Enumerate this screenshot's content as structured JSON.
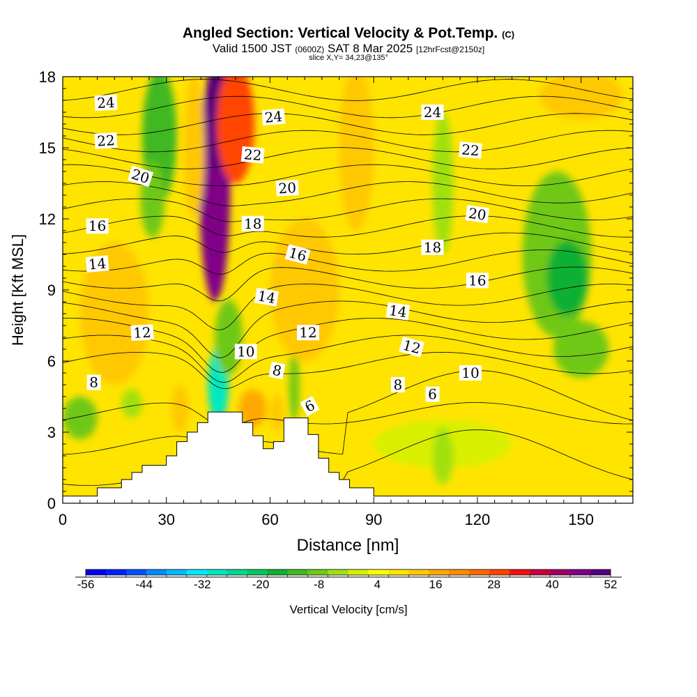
{
  "title": {
    "main": "Angled Section: Vertical Velocity & Pot.Temp.",
    "copyright": "(C)",
    "valid_prefix": "Valid 1500 JST",
    "valid_utc": "(0600Z)",
    "valid_date": "SAT 8 Mar 2025",
    "forecast": "[12hrFcst@2150z]",
    "slice": "slice X,Y= 34,23@135°"
  },
  "chart_data": {
    "type": "heatmap",
    "xlabel": "Distance [nm]",
    "ylabel": "Height [Kft MSL]",
    "xlim": [
      0,
      165
    ],
    "ylim": [
      0,
      18
    ],
    "x_ticks": [
      0,
      30,
      60,
      90,
      120,
      150
    ],
    "y_ticks": [
      0,
      3,
      6,
      9,
      12,
      15,
      18
    ],
    "colorbar": {
      "label": "Vertical Velocity [cm/s]",
      "ticks": [
        -56,
        -44,
        -32,
        -20,
        -8,
        4,
        16,
        28,
        40,
        52
      ],
      "min": -56,
      "max": 52,
      "colors": [
        "#0000f0",
        "#0020ff",
        "#0050ff",
        "#0088ff",
        "#00b8ff",
        "#00e8ff",
        "#00e8c0",
        "#00d890",
        "#00c860",
        "#10b030",
        "#40b820",
        "#70c818",
        "#a0e010",
        "#d8f000",
        "#ffff00",
        "#ffe400",
        "#ffc800",
        "#ffa800",
        "#ff8c00",
        "#ff6800",
        "#ff4400",
        "#f01010",
        "#c8003c",
        "#a00064",
        "#800088",
        "#50007c"
      ]
    },
    "terrain_profile_kft": [
      {
        "x": 0,
        "y": 0.3
      },
      {
        "x": 10,
        "y": 0.3
      },
      {
        "x": 10,
        "y": 0.65
      },
      {
        "x": 17,
        "y": 0.65
      },
      {
        "x": 17,
        "y": 1.0
      },
      {
        "x": 20,
        "y": 1.0
      },
      {
        "x": 20,
        "y": 1.3
      },
      {
        "x": 23,
        "y": 1.3
      },
      {
        "x": 23,
        "y": 1.6
      },
      {
        "x": 30,
        "y": 1.6
      },
      {
        "x": 30,
        "y": 2.0
      },
      {
        "x": 33,
        "y": 2.0
      },
      {
        "x": 33,
        "y": 2.6
      },
      {
        "x": 36,
        "y": 2.6
      },
      {
        "x": 36,
        "y": 3.0
      },
      {
        "x": 39,
        "y": 3.0
      },
      {
        "x": 39,
        "y": 3.4
      },
      {
        "x": 42,
        "y": 3.4
      },
      {
        "x": 42,
        "y": 3.85
      },
      {
        "x": 52,
        "y": 3.85
      },
      {
        "x": 52,
        "y": 3.4
      },
      {
        "x": 55,
        "y": 3.4
      },
      {
        "x": 55,
        "y": 2.85
      },
      {
        "x": 58,
        "y": 2.85
      },
      {
        "x": 58,
        "y": 2.3
      },
      {
        "x": 61,
        "y": 2.3
      },
      {
        "x": 61,
        "y": 2.6
      },
      {
        "x": 64,
        "y": 2.6
      },
      {
        "x": 64,
        "y": 3.6
      },
      {
        "x": 71,
        "y": 3.6
      },
      {
        "x": 71,
        "y": 2.9
      },
      {
        "x": 74,
        "y": 2.9
      },
      {
        "x": 74,
        "y": 1.9
      },
      {
        "x": 77,
        "y": 1.9
      },
      {
        "x": 77,
        "y": 1.3
      },
      {
        "x": 80,
        "y": 1.3
      },
      {
        "x": 80,
        "y": 1.0
      },
      {
        "x": 83,
        "y": 1.0
      },
      {
        "x": 83,
        "y": 0.65
      },
      {
        "x": 90,
        "y": 0.65
      },
      {
        "x": 90,
        "y": 0.3
      },
      {
        "x": 165,
        "y": 0.3
      }
    ],
    "velocity_features_cms": [
      {
        "x": 44,
        "y": 13.5,
        "rx": 4.5,
        "ry": 5.0,
        "v": 44
      },
      {
        "x": 45,
        "y": 16.5,
        "rx": 3.0,
        "ry": 2.5,
        "v": 52
      },
      {
        "x": 50,
        "y": 16.0,
        "rx": 5.5,
        "ry": 2.5,
        "v": 30
      },
      {
        "x": 38,
        "y": 15.0,
        "rx": 3.0,
        "ry": 3.0,
        "v": 14
      },
      {
        "x": 28,
        "y": 15.5,
        "rx": 5.0,
        "ry": 2.8,
        "v": -14
      },
      {
        "x": 26,
        "y": 12.8,
        "rx": 3.5,
        "ry": 1.6,
        "v": -8
      },
      {
        "x": 45,
        "y": 5.0,
        "rx": 3.0,
        "ry": 1.6,
        "v": -28
      },
      {
        "x": 48,
        "y": 7.0,
        "rx": 4.0,
        "ry": 1.6,
        "v": -10
      },
      {
        "x": 67,
        "y": 5.0,
        "rx": 1.5,
        "ry": 1.6,
        "v": -10
      },
      {
        "x": 55,
        "y": 4.0,
        "rx": 4.0,
        "ry": 0.8,
        "v": 18
      },
      {
        "x": 62,
        "y": 3.8,
        "rx": 2.0,
        "ry": 0.8,
        "v": 14
      },
      {
        "x": 34,
        "y": 4.0,
        "rx": 2.5,
        "ry": 1.0,
        "v": 12
      },
      {
        "x": 85,
        "y": 15.0,
        "rx": 5.0,
        "ry": 3.5,
        "v": 14
      },
      {
        "x": 96,
        "y": 15.0,
        "rx": 3.0,
        "ry": 2.2,
        "v": 8
      },
      {
        "x": 122,
        "y": 16.5,
        "rx": 6.0,
        "ry": 1.5,
        "v": 10
      },
      {
        "x": 150,
        "y": 17.2,
        "rx": 12.0,
        "ry": 1.0,
        "v": 14
      },
      {
        "x": 110,
        "y": 13.5,
        "rx": 3.0,
        "ry": 3.0,
        "v": -5
      },
      {
        "x": 143,
        "y": 10.5,
        "rx": 10.0,
        "ry": 3.5,
        "v": -10
      },
      {
        "x": 146,
        "y": 9.5,
        "rx": 6.0,
        "ry": 1.6,
        "v": -15
      },
      {
        "x": 150,
        "y": 6.5,
        "rx": 8.0,
        "ry": 1.2,
        "v": -8
      },
      {
        "x": 110,
        "y": 2.5,
        "rx": 20.0,
        "ry": 1.0,
        "v": -2
      },
      {
        "x": 110,
        "y": 2.0,
        "rx": 3.0,
        "ry": 1.2,
        "v": -6
      },
      {
        "x": 5,
        "y": 3.6,
        "rx": 5.0,
        "ry": 0.9,
        "v": -8
      },
      {
        "x": 20,
        "y": 4.2,
        "rx": 3.0,
        "ry": 0.6,
        "v": -5
      },
      {
        "x": 15,
        "y": 8.0,
        "rx": 10.0,
        "ry": 3.0,
        "v": 13
      },
      {
        "x": 70,
        "y": 9.0,
        "rx": 10.0,
        "ry": 3.0,
        "v": 12
      },
      {
        "x": 80,
        "y": 4.5,
        "rx": 6.0,
        "ry": 1.5,
        "v": 8
      }
    ],
    "theta_contour_labels": [
      {
        "text": "24",
        "x": 12.5,
        "y": 16.9,
        "rot": -3
      },
      {
        "text": "22",
        "x": 12.5,
        "y": 15.3,
        "rot": -3
      },
      {
        "text": "20",
        "x": 22.5,
        "y": 13.8,
        "rot": 18
      },
      {
        "text": "16",
        "x": 10,
        "y": 11.7,
        "rot": 0
      },
      {
        "text": "14",
        "x": 10,
        "y": 10.1,
        "rot": -5
      },
      {
        "text": "12",
        "x": 23,
        "y": 7.2,
        "rot": -3
      },
      {
        "text": "8",
        "x": 9,
        "y": 5.1,
        "rot": 0
      },
      {
        "text": "24",
        "x": 61,
        "y": 16.3,
        "rot": -5
      },
      {
        "text": "22",
        "x": 55,
        "y": 14.7,
        "rot": 5
      },
      {
        "text": "20",
        "x": 65,
        "y": 13.3,
        "rot": -3
      },
      {
        "text": "18",
        "x": 55,
        "y": 11.8,
        "rot": 0
      },
      {
        "text": "16",
        "x": 68,
        "y": 10.5,
        "rot": 15
      },
      {
        "text": "14",
        "x": 59,
        "y": 8.7,
        "rot": 10
      },
      {
        "text": "10",
        "x": 53,
        "y": 6.4,
        "rot": 0
      },
      {
        "text": "8",
        "x": 62,
        "y": 5.6,
        "rot": 12
      },
      {
        "text": "12",
        "x": 71,
        "y": 7.2,
        "rot": 0
      },
      {
        "text": "6",
        "x": 71.5,
        "y": 4.1,
        "rot": -28
      },
      {
        "text": "24",
        "x": 107,
        "y": 16.5,
        "rot": 0
      },
      {
        "text": "22",
        "x": 118,
        "y": 14.9,
        "rot": 5
      },
      {
        "text": "20",
        "x": 120,
        "y": 12.2,
        "rot": 8
      },
      {
        "text": "18",
        "x": 107,
        "y": 10.8,
        "rot": 0
      },
      {
        "text": "16",
        "x": 120,
        "y": 9.4,
        "rot": 0
      },
      {
        "text": "14",
        "x": 97,
        "y": 8.1,
        "rot": 8
      },
      {
        "text": "12",
        "x": 101,
        "y": 6.6,
        "rot": 15
      },
      {
        "text": "10",
        "x": 118,
        "y": 5.5,
        "rot": 0
      },
      {
        "text": "8",
        "x": 97,
        "y": 5.0,
        "rot": 0
      },
      {
        "text": "6",
        "x": 107,
        "y": 4.6,
        "rot": 0
      }
    ],
    "theta_contour_levels": [
      6,
      7,
      8,
      9,
      10,
      11,
      12,
      13,
      14,
      15,
      16,
      17,
      18,
      19,
      20,
      21,
      22,
      23,
      24,
      25
    ],
    "grid": false
  }
}
